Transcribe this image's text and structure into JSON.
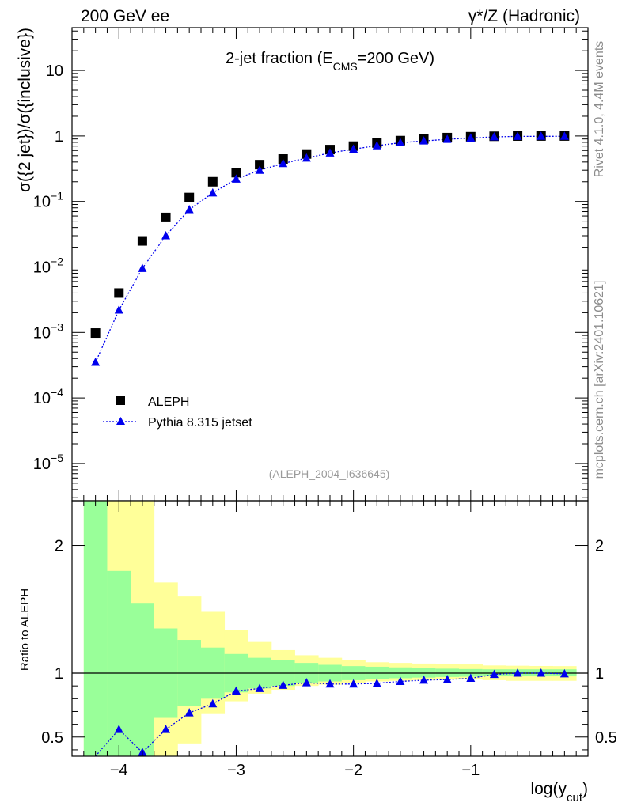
{
  "header": {
    "left": "200 GeV ee",
    "right": "γ*/Z (Hadronic)"
  },
  "side_labels": {
    "rivet": "Rivet 4.1.0,  4.4M events",
    "mcplots": "mcplots.cern.ch [arXiv:2401.10621]"
  },
  "chart_data": [
    {
      "type": "scatter",
      "panel": "main",
      "title_main": "2-jet fraction (E",
      "title_sub": "CMS",
      "title_tail": "=200 GeV)",
      "ylabel": "σ({2 jet})/σ({inclusive})",
      "watermark": "(ALEPH_2004_I636645)",
      "yscale": "log",
      "ylim": [
        2.7e-06,
        45
      ],
      "xlim": [
        -4.4,
        0
      ],
      "ytick_labels": [
        {
          "base": "10",
          "exp": "−5",
          "value": 1e-05
        },
        {
          "base": "10",
          "exp": "−4",
          "value": 0.0001
        },
        {
          "base": "10",
          "exp": "−3",
          "value": 0.001
        },
        {
          "base": "10",
          "exp": "−2",
          "value": 0.01
        },
        {
          "base": "10",
          "exp": "−1",
          "value": 0.1
        },
        {
          "base": "1",
          "exp": "",
          "value": 1
        },
        {
          "base": "10",
          "exp": "",
          "value": 10
        }
      ],
      "legend": {
        "position": "lower-left",
        "entries": [
          "ALEPH",
          "Pythia 8.315 jetset"
        ]
      },
      "series": [
        {
          "name": "ALEPH",
          "marker": "square",
          "color": "#000000",
          "x": [
            -4.2,
            -4.0,
            -3.8,
            -3.6,
            -3.4,
            -3.2,
            -3.0,
            -2.8,
            -2.6,
            -2.4,
            -2.2,
            -2.0,
            -1.8,
            -1.6,
            -1.4,
            -1.2,
            -1.0,
            -0.8,
            -0.6,
            -0.4,
            -0.2
          ],
          "y": [
            0.00098,
            0.004,
            0.025,
            0.057,
            0.115,
            0.2,
            0.275,
            0.365,
            0.445,
            0.53,
            0.62,
            0.7,
            0.78,
            0.85,
            0.9,
            0.945,
            0.975,
            0.99,
            0.998,
            1.0,
            1.0
          ]
        },
        {
          "name": "Pythia 8.315 jetset",
          "marker": "triangle",
          "color": "#0000ee",
          "x": [
            -4.2,
            -4.0,
            -3.8,
            -3.6,
            -3.4,
            -3.2,
            -3.0,
            -2.8,
            -2.6,
            -2.4,
            -2.2,
            -2.0,
            -1.8,
            -1.6,
            -1.4,
            -1.2,
            -1.0,
            -0.8,
            -0.6,
            -0.4,
            -0.2
          ],
          "y": [
            0.00035,
            0.0022,
            0.0095,
            0.03,
            0.075,
            0.135,
            0.22,
            0.3,
            0.38,
            0.46,
            0.55,
            0.63,
            0.71,
            0.79,
            0.84,
            0.89,
            0.93,
            0.97,
            0.985,
            0.99,
            0.99
          ]
        }
      ]
    },
    {
      "type": "scatter",
      "panel": "ratio",
      "ylabel": "Ratio to ALEPH",
      "xlabel_main": "log(y",
      "xlabel_sub": "cut",
      "xlabel_tail": ")",
      "ylim": [
        0.35,
        2.35
      ],
      "xlim": [
        -4.4,
        0
      ],
      "yticks": [
        0.5,
        1,
        2
      ],
      "ytick_labels": [
        "0.5",
        "1",
        "2"
      ],
      "xticks": [
        -4,
        -3,
        -2,
        -1
      ],
      "xtick_labels": [
        "−4",
        "−3",
        "−2",
        "−1"
      ],
      "reference_line": 1,
      "bands": {
        "edges": [
          -4.3,
          -4.1,
          -3.9,
          -3.7,
          -3.5,
          -3.3,
          -3.1,
          -2.9,
          -2.7,
          -2.5,
          -2.3,
          -2.1,
          -1.9,
          -1.7,
          -1.5,
          -1.3,
          -1.1,
          -0.9,
          -0.7,
          -0.5,
          -0.3,
          -0.1
        ],
        "inner_color": "#99ff99",
        "outer_color": "#ffff99",
        "inner_low": [
          0.35,
          0.35,
          0.35,
          0.65,
          0.74,
          0.8,
          0.85,
          0.88,
          0.9,
          0.92,
          0.935,
          0.945,
          0.955,
          0.96,
          0.965,
          0.97,
          0.972,
          0.975,
          0.975,
          0.975,
          0.975
        ],
        "inner_high": [
          2.35,
          1.8,
          1.55,
          1.35,
          1.26,
          1.2,
          1.15,
          1.12,
          1.1,
          1.08,
          1.065,
          1.055,
          1.05,
          1.045,
          1.04,
          1.035,
          1.032,
          1.03,
          1.03,
          1.03,
          1.03
        ],
        "outer_low": [
          0.35,
          0.35,
          0.35,
          0.35,
          0.45,
          0.68,
          0.78,
          0.84,
          0.87,
          0.9,
          0.91,
          0.925,
          0.935,
          0.94,
          0.945,
          0.95,
          0.95,
          0.945,
          0.94,
          0.94,
          0.94
        ],
        "outer_high": [
          2.35,
          2.35,
          2.35,
          1.71,
          1.6,
          1.48,
          1.34,
          1.25,
          1.18,
          1.14,
          1.12,
          1.1,
          1.085,
          1.08,
          1.075,
          1.07,
          1.068,
          1.06,
          1.058,
          1.056,
          1.055
        ]
      },
      "series": [
        {
          "name": "Pythia 8.315 jetset / ALEPH",
          "marker": "triangle",
          "color": "#0000ee",
          "x": [
            -4.2,
            -4.0,
            -3.8,
            -3.6,
            -3.4,
            -3.2,
            -3.0,
            -2.8,
            -2.6,
            -2.4,
            -2.2,
            -2.0,
            -1.8,
            -1.6,
            -1.4,
            -1.2,
            -1.0,
            -0.8,
            -0.6,
            -0.4,
            -0.2
          ],
          "y": [
            0.35,
            0.56,
            0.38,
            0.56,
            0.69,
            0.76,
            0.86,
            0.88,
            0.905,
            0.925,
            0.915,
            0.915,
            0.92,
            0.935,
            0.945,
            0.95,
            0.96,
            0.99,
            1.0,
            1.0,
            0.995
          ]
        }
      ]
    }
  ]
}
